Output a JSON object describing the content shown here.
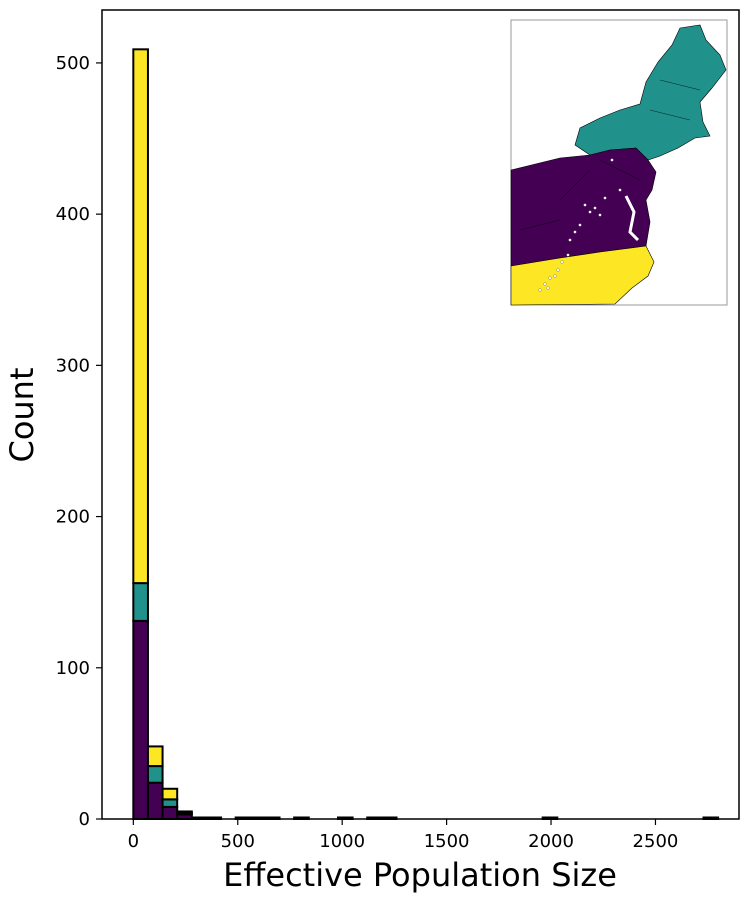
{
  "chart_data": {
    "type": "bar",
    "stacked": true,
    "title": "",
    "xlabel": "Effective Population Size",
    "ylabel": "Count",
    "xlim": [
      -150,
      2900
    ],
    "ylim": [
      0,
      535
    ],
    "x_ticks": [
      0,
      500,
      1000,
      1500,
      2000,
      2500
    ],
    "y_ticks": [
      0,
      100,
      200,
      300,
      400,
      500
    ],
    "grid": false,
    "legend": "none",
    "bin_width": 70,
    "bin_starts": [
      0,
      70,
      140,
      210,
      280,
      350,
      490,
      560,
      630,
      770,
      980,
      1120,
      1190,
      1960,
      2730
    ],
    "series": [
      {
        "color": "#440154",
        "values": [
          131,
          24,
          8,
          3,
          1,
          1,
          1,
          1,
          1,
          0,
          1,
          1,
          1,
          1,
          1
        ]
      },
      {
        "color": "#21918c",
        "values": [
          25,
          11,
          5,
          1,
          0,
          0,
          0,
          0,
          0,
          1,
          0,
          0,
          0,
          0,
          0
        ]
      },
      {
        "color": "#fde725",
        "values": [
          353,
          13,
          7,
          1,
          0,
          0,
          0,
          0,
          0,
          0,
          0,
          0,
          0,
          0,
          0
        ]
      }
    ],
    "inset_map": {
      "description_icon": "region-map-icon",
      "regions": [
        {
          "color": "#21918c"
        },
        {
          "color": "#440154"
        },
        {
          "color": "#fde725"
        }
      ]
    }
  }
}
